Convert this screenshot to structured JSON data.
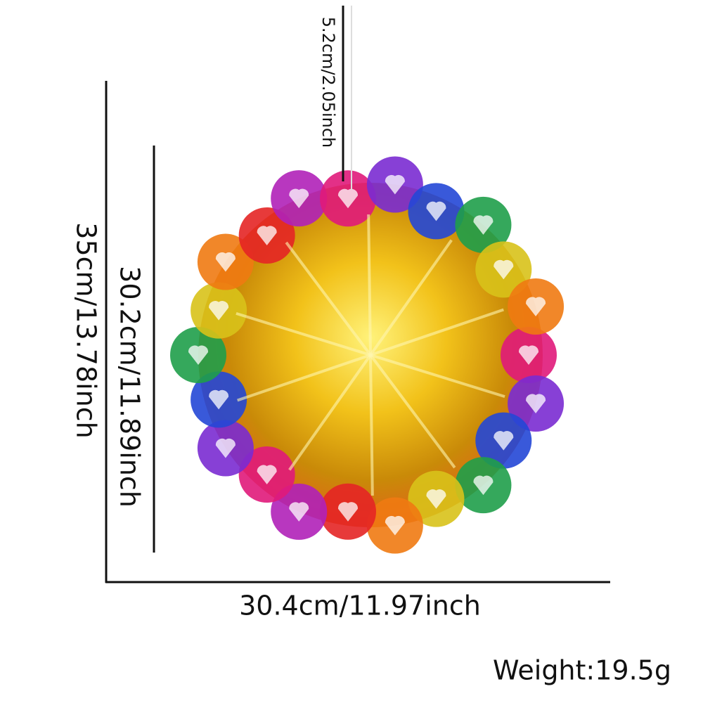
{
  "dimensions": {
    "hanger": "5.2cm/2.05inch",
    "height": "35cm/13.78inch",
    "ball_height": "30.2cm/11.89inch",
    "width": "30.4cm/11.97inch"
  },
  "weight": "Weight:19.5g"
}
